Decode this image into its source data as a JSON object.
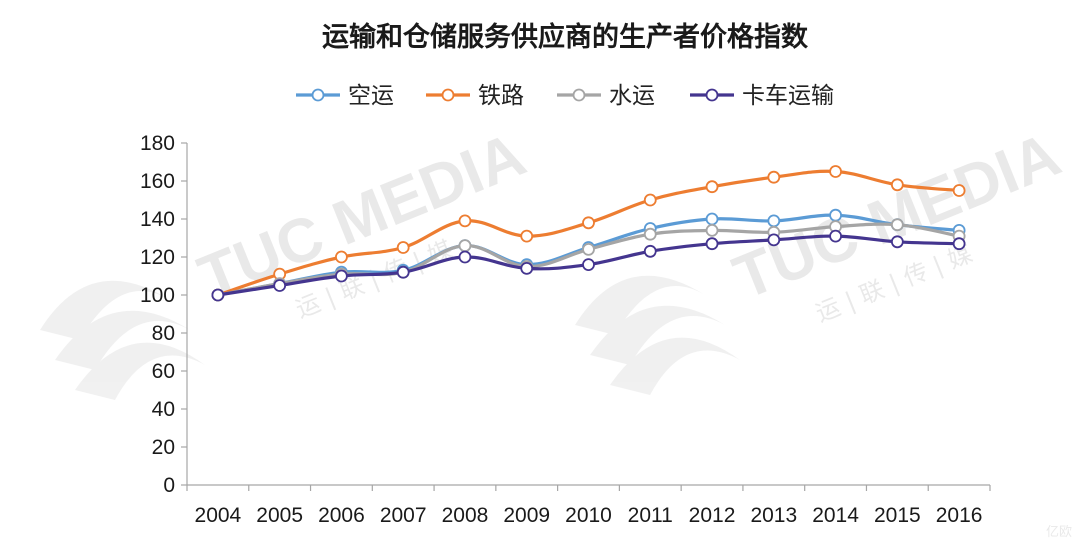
{
  "chart_data": {
    "type": "line",
    "title": "运输和仓储服务供应商的生产者价格指数",
    "xlabel": "",
    "ylabel": "",
    "ylim": [
      0,
      180
    ],
    "yticks": [
      0,
      20,
      40,
      60,
      80,
      100,
      120,
      140,
      160,
      180
    ],
    "x": [
      "2004",
      "2005",
      "2006",
      "2007",
      "2008",
      "2009",
      "2010",
      "2011",
      "2012",
      "2013",
      "2014",
      "2015",
      "2016"
    ],
    "legend_position": "top-center",
    "series": [
      {
        "name": "空运",
        "color": "#5b9bd5",
        "values": [
          100,
          106,
          112,
          113,
          126,
          116,
          125,
          135,
          140,
          139,
          142,
          137,
          134
        ]
      },
      {
        "name": "铁路",
        "color": "#ed7d31",
        "values": [
          100,
          111,
          120,
          125,
          139,
          131,
          138,
          150,
          157,
          162,
          165,
          158,
          155
        ]
      },
      {
        "name": "水运",
        "color": "#a5a5a5",
        "values": [
          100,
          106,
          111,
          112,
          126,
          115,
          124,
          132,
          134,
          133,
          136,
          137,
          131
        ]
      },
      {
        "name": "卡车运输",
        "color": "#44358f",
        "values": [
          100,
          105,
          110,
          112,
          120,
          114,
          116,
          123,
          127,
          129,
          131,
          128,
          127
        ]
      }
    ]
  },
  "watermark": {
    "brand": "TUC MEDIA",
    "subtitle": "运 | 联 | 传 | 媒",
    "corner": "亿欧"
  }
}
